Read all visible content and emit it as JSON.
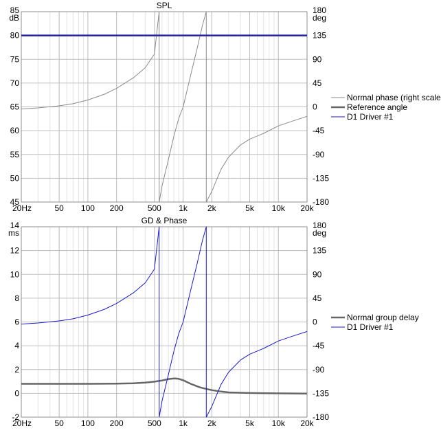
{
  "colors": {
    "grid_major": "#bfbfbf",
    "grid_minor": "#e3e3e3",
    "frame": "#8c8c8c",
    "phase_gray": "#8a8a8a",
    "ref_gray": "#666666",
    "driver_blue": "#1a1acc",
    "ref_blue": "#2020a0"
  },
  "chart_data": [
    {
      "type": "line",
      "title": "SPL",
      "x_scale": "log",
      "xlim": [
        20,
        20000
      ],
      "x_ticks": [
        {
          "value": 20,
          "label": "20Hz"
        },
        {
          "value": 50,
          "label": "50"
        },
        {
          "value": 100,
          "label": "100"
        },
        {
          "value": 200,
          "label": "200"
        },
        {
          "value": 500,
          "label": "500"
        },
        {
          "value": 1000,
          "label": "1k"
        },
        {
          "value": 2000,
          "label": "2k"
        },
        {
          "value": 5000,
          "label": "5k"
        },
        {
          "value": 10000,
          "label": "10k"
        },
        {
          "value": 20000,
          "label": "20k"
        }
      ],
      "left_axis": {
        "unit": "dB",
        "ylim": [
          45,
          85
        ],
        "ticks": [
          {
            "value": 85,
            "label": "85"
          },
          {
            "value": 80,
            "label": "80"
          },
          {
            "value": 75,
            "label": "75"
          },
          {
            "value": 70,
            "label": "70"
          },
          {
            "value": 65,
            "label": "65"
          },
          {
            "value": 60,
            "label": "60"
          },
          {
            "value": 55,
            "label": "55"
          },
          {
            "value": 50,
            "label": "50"
          },
          {
            "value": 45,
            "label": "45"
          }
        ]
      },
      "right_axis": {
        "unit": "deg",
        "ylim": [
          -180,
          180
        ],
        "ticks": [
          {
            "value": 180,
            "label": "180"
          },
          {
            "value": 135,
            "label": "135"
          },
          {
            "value": 90,
            "label": "90"
          },
          {
            "value": 45,
            "label": "45"
          },
          {
            "value": 0,
            "label": "0"
          },
          {
            "value": -45,
            "label": "-45"
          },
          {
            "value": -90,
            "label": "-90"
          },
          {
            "value": -135,
            "label": "-135"
          },
          {
            "value": -180,
            "label": "-180"
          }
        ]
      },
      "legend": {
        "placement": "right",
        "entries": [
          {
            "label": "Normal phase (right scale)",
            "style": "phase"
          },
          {
            "label": "Reference angle",
            "style": "ref"
          },
          {
            "label": "D1 Driver #1",
            "style": "driver"
          }
        ]
      },
      "series": [
        {
          "name": "Normal phase (right scale)",
          "axis": "right",
          "style": "phase",
          "x": [
            20,
            30,
            50,
            70,
            100,
            150,
            200,
            300,
            400,
            500,
            560,
            561,
            600,
            700,
            800,
            900,
            1000,
            1200,
            1400,
            1600,
            1750,
            1751,
            2000,
            2500,
            3000,
            4000,
            5000,
            7000,
            10000,
            14000,
            20000
          ],
          "y": [
            -4,
            -2,
            2,
            6,
            13,
            24,
            35,
            55,
            74,
            100,
            180,
            -180,
            -150,
            -100,
            -55,
            -22,
            0,
            60,
            110,
            155,
            180,
            -180,
            -160,
            -118,
            -95,
            -72,
            -61,
            -50,
            -36,
            -27,
            -18
          ]
        },
        {
          "name": "Reference angle",
          "axis": "left",
          "style": "ref_blue",
          "x": [
            20,
            20000
          ],
          "y": [
            80,
            80
          ]
        }
      ]
    },
    {
      "type": "line",
      "title": "GD & Phase",
      "x_scale": "log",
      "xlim": [
        20,
        20000
      ],
      "x_ticks": [
        {
          "value": 20,
          "label": "20Hz"
        },
        {
          "value": 50,
          "label": "50"
        },
        {
          "value": 100,
          "label": "100"
        },
        {
          "value": 200,
          "label": "200"
        },
        {
          "value": 500,
          "label": "500"
        },
        {
          "value": 1000,
          "label": "1k"
        },
        {
          "value": 2000,
          "label": "2k"
        },
        {
          "value": 5000,
          "label": "5k"
        },
        {
          "value": 10000,
          "label": "10k"
        },
        {
          "value": 20000,
          "label": "20k"
        }
      ],
      "left_axis": {
        "unit": "ms",
        "ylim": [
          -2,
          14
        ],
        "ticks": [
          {
            "value": 14,
            "label": "14"
          },
          {
            "value": 12,
            "label": "12"
          },
          {
            "value": 10,
            "label": "10"
          },
          {
            "value": 8,
            "label": "8"
          },
          {
            "value": 6,
            "label": "6"
          },
          {
            "value": 4,
            "label": "4"
          },
          {
            "value": 2,
            "label": "2"
          },
          {
            "value": 0,
            "label": "0"
          },
          {
            "value": -2,
            "label": "-2"
          }
        ]
      },
      "right_axis": {
        "unit": "deg",
        "ylim": [
          -180,
          180
        ],
        "ticks": [
          {
            "value": 180,
            "label": "180"
          },
          {
            "value": 135,
            "label": "135"
          },
          {
            "value": 90,
            "label": "90"
          },
          {
            "value": 45,
            "label": "45"
          },
          {
            "value": 0,
            "label": "0"
          },
          {
            "value": -45,
            "label": "-45"
          },
          {
            "value": -90,
            "label": "-90"
          },
          {
            "value": -135,
            "label": "-135"
          },
          {
            "value": -180,
            "label": "-180"
          }
        ]
      },
      "legend": {
        "placement": "right",
        "entries": [
          {
            "label": "Normal group delay",
            "style": "ref"
          },
          {
            "label": "D1 Driver #1",
            "style": "driver"
          }
        ]
      },
      "series": [
        {
          "name": "Normal group delay",
          "axis": "left",
          "style": "ref",
          "x": [
            20,
            50,
            100,
            200,
            300,
            400,
            500,
            600,
            700,
            800,
            900,
            1000,
            1200,
            1500,
            1800,
            2000,
            2500,
            3000,
            5000,
            10000,
            20000
          ],
          "y": [
            0.8,
            0.8,
            0.8,
            0.82,
            0.85,
            0.9,
            0.98,
            1.08,
            1.2,
            1.25,
            1.22,
            1.1,
            0.8,
            0.5,
            0.35,
            0.27,
            0.15,
            0.08,
            0.03,
            0.0,
            -0.02
          ]
        },
        {
          "name": "D1 Driver #1",
          "axis": "right",
          "style": "driver",
          "x": [
            20,
            30,
            50,
            70,
            100,
            150,
            200,
            300,
            400,
            500,
            560,
            561,
            600,
            700,
            800,
            900,
            1000,
            1200,
            1400,
            1600,
            1750,
            1751,
            2000,
            2500,
            3000,
            4000,
            5000,
            7000,
            10000,
            14000,
            20000
          ],
          "y": [
            -4,
            -2,
            2,
            6,
            13,
            24,
            35,
            55,
            74,
            100,
            180,
            -180,
            -150,
            -100,
            -55,
            -22,
            0,
            60,
            110,
            155,
            180,
            -180,
            -160,
            -118,
            -95,
            -72,
            -61,
            -50,
            -36,
            -27,
            -18
          ]
        }
      ]
    }
  ]
}
